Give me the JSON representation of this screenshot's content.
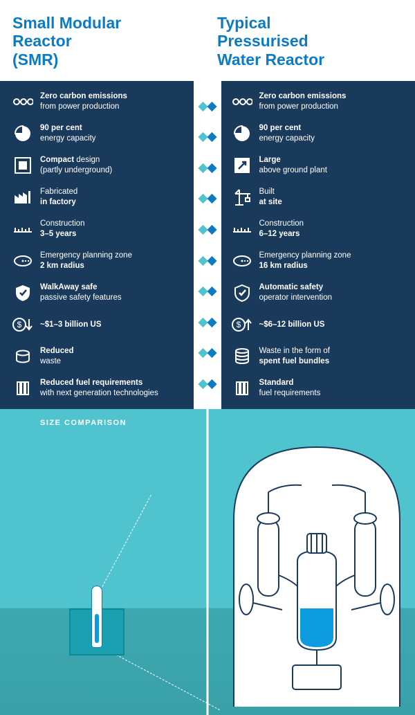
{
  "colors": {
    "headline": "#0d7bc4",
    "panel_bg": "#1a3a5c",
    "icon_stroke": "#ffffff",
    "diamond_left": "#4fc4cf",
    "diamond_right": "#0d7bc4",
    "size_bg_top": "#4fc4cf",
    "size_bg_bottom": "#39a0a8",
    "water": "#0d9be0"
  },
  "left": {
    "title_line1": "Small Modular",
    "title_line2": "Reactor",
    "title_line3": "(SMR)",
    "features": [
      {
        "icon": "molecule",
        "bold": "Zero carbon emissions",
        "plain": "from power production",
        "bold_first": true
      },
      {
        "icon": "pie",
        "bold": "90 per cent",
        "plain": "energy capacity",
        "bold_first": true
      },
      {
        "icon": "compact",
        "bold": "Compact",
        "plain": " design",
        "bold_first": true,
        "plain2": "(partly underground)"
      },
      {
        "icon": "factory",
        "plain": "Fabricated",
        "bold": "in factory",
        "bold_first": false
      },
      {
        "icon": "ruler",
        "plain": "Construction",
        "bold": "3–5 years",
        "bold_first": false
      },
      {
        "icon": "zone",
        "plain": "Emergency planning zone",
        "bold": "2 km radius",
        "bold_first": false
      },
      {
        "icon": "shield",
        "bold": "WalkAway safe",
        "plain": "passive safety features",
        "bold_first": true
      },
      {
        "icon": "cost-down",
        "bold": "~$1–3 billion US",
        "plain": "",
        "bold_first": true
      },
      {
        "icon": "waste-sm",
        "bold": "Reduced",
        "plain": "waste",
        "bold_first": true,
        "break_after_bold": true
      },
      {
        "icon": "fuel",
        "bold": "Reduced fuel requirements",
        "plain": "with next generation technologies",
        "bold_first": true
      }
    ]
  },
  "right": {
    "title_line1": "Typical",
    "title_line2": "Pressurised",
    "title_line3": "Water Reactor",
    "features": [
      {
        "icon": "molecule",
        "bold": "Zero carbon emissions",
        "plain": "from power production",
        "bold_first": true
      },
      {
        "icon": "pie",
        "bold": "90 per cent",
        "plain": "energy capacity",
        "bold_first": true
      },
      {
        "icon": "expand",
        "bold": "Large",
        "plain": "above ground plant",
        "bold_first": true
      },
      {
        "icon": "crane",
        "plain": "Built",
        "bold": "at site",
        "bold_first": false
      },
      {
        "icon": "ruler",
        "plain": "Construction",
        "bold": "6–12 years",
        "bold_first": false
      },
      {
        "icon": "zone",
        "plain": "Emergency planning zone",
        "bold": "16 km radius",
        "bold_first": false
      },
      {
        "icon": "shield-ok",
        "bold": "Automatic safety",
        "plain": "operator intervention",
        "bold_first": true
      },
      {
        "icon": "cost-up",
        "bold": "~$6–12 billion US",
        "plain": "",
        "bold_first": true
      },
      {
        "icon": "waste-lg",
        "plain": "Waste in the form of",
        "bold": "spent fuel bundles",
        "bold_first": false
      },
      {
        "icon": "fuel",
        "bold": "Standard",
        "plain": "fuel requirements",
        "bold_first": true,
        "break_after_bold": true,
        "plain_bold": true,
        "plain_actually_bold": false
      }
    ]
  },
  "size_comparison": {
    "label": "SIZE COMPARISON",
    "smr": {
      "underground_box": true
    },
    "pwr": {
      "dome": true
    }
  }
}
